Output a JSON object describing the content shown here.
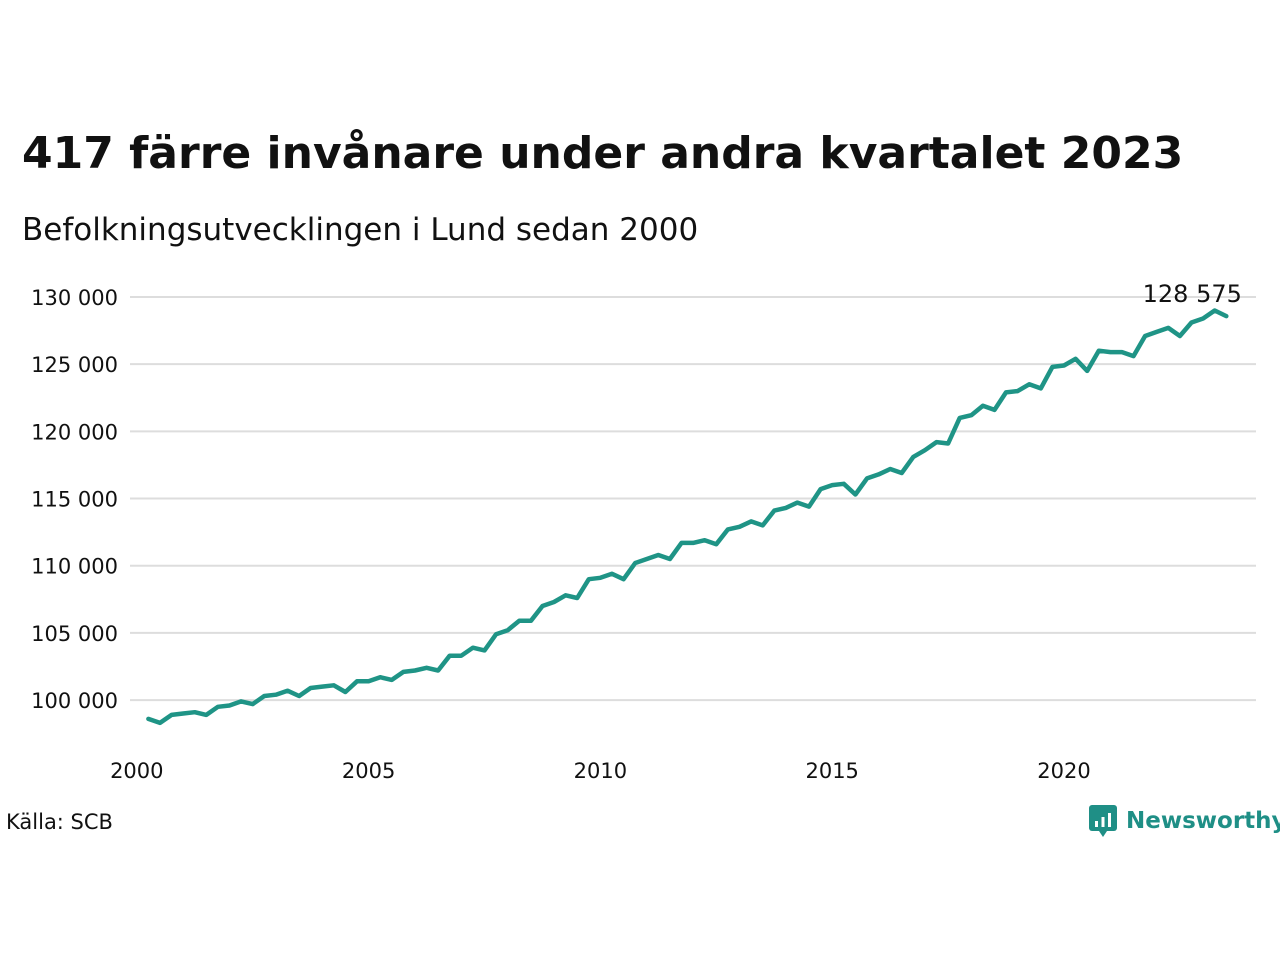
{
  "title": "417 färre invånare under andra kvartalet 2023",
  "subtitle": "Befolkningsutvecklingen i Lund sedan 2000",
  "source": "Källa: SCB",
  "brand": {
    "name": "Newsworthy",
    "icon": "newsworthy-logo-icon"
  },
  "colors": {
    "line": "#1f9486",
    "grid": "#dddddd",
    "text": "#111111",
    "brand": "#1f8f86"
  },
  "chart_data": {
    "type": "line",
    "title": "417 färre invånare under andra kvartalet 2023",
    "subtitle": "Befolkningsutvecklingen i Lund sedan 2000",
    "xlabel": "",
    "ylabel": "",
    "xlim": [
      2000,
      2024.3
    ],
    "ylim": [
      97000,
      130500
    ],
    "grid": true,
    "x_ticks": [
      {
        "value": 2000,
        "label": "2000"
      },
      {
        "value": 2005,
        "label": "2005"
      },
      {
        "value": 2010,
        "label": "2010"
      },
      {
        "value": 2015,
        "label": "2015"
      },
      {
        "value": 2020,
        "label": "2020"
      }
    ],
    "y_ticks": [
      {
        "value": 100000,
        "label": "100 000"
      },
      {
        "value": 105000,
        "label": "105 000"
      },
      {
        "value": 110000,
        "label": "110 000"
      },
      {
        "value": 115000,
        "label": "115 000"
      },
      {
        "value": 120000,
        "label": "120 000"
      },
      {
        "value": 125000,
        "label": "125 000"
      },
      {
        "value": 130000,
        "label": "130 000"
      }
    ],
    "end_label": "128 575",
    "series": [
      {
        "x_start": 2000.25,
        "x_step": 0.25,
        "values": [
          98600,
          98300,
          98900,
          99000,
          99100,
          98900,
          99500,
          99600,
          99900,
          99700,
          100300,
          100400,
          100700,
          100300,
          100900,
          101000,
          101100,
          100600,
          101400,
          101400,
          101700,
          101500,
          102100,
          102200,
          102400,
          102200,
          103300,
          103300,
          103900,
          103700,
          104900,
          105200,
          105900,
          105900,
          107000,
          107300,
          107800,
          107600,
          109000,
          109100,
          109400,
          109000,
          110200,
          110500,
          110800,
          110500,
          111700,
          111700,
          111900,
          111600,
          112700,
          112900,
          113300,
          113000,
          114100,
          114300,
          114700,
          114400,
          115700,
          116000,
          116100,
          115300,
          116500,
          116800,
          117200,
          116900,
          118100,
          118600,
          119200,
          119100,
          121000,
          121200,
          121900,
          121600,
          122900,
          123000,
          123500,
          123200,
          124800,
          124900,
          125400,
          124500,
          126000,
          125900,
          125900,
          125600,
          127100,
          127400,
          127700,
          127100,
          128100,
          128400,
          128992,
          128575
        ]
      }
    ]
  }
}
